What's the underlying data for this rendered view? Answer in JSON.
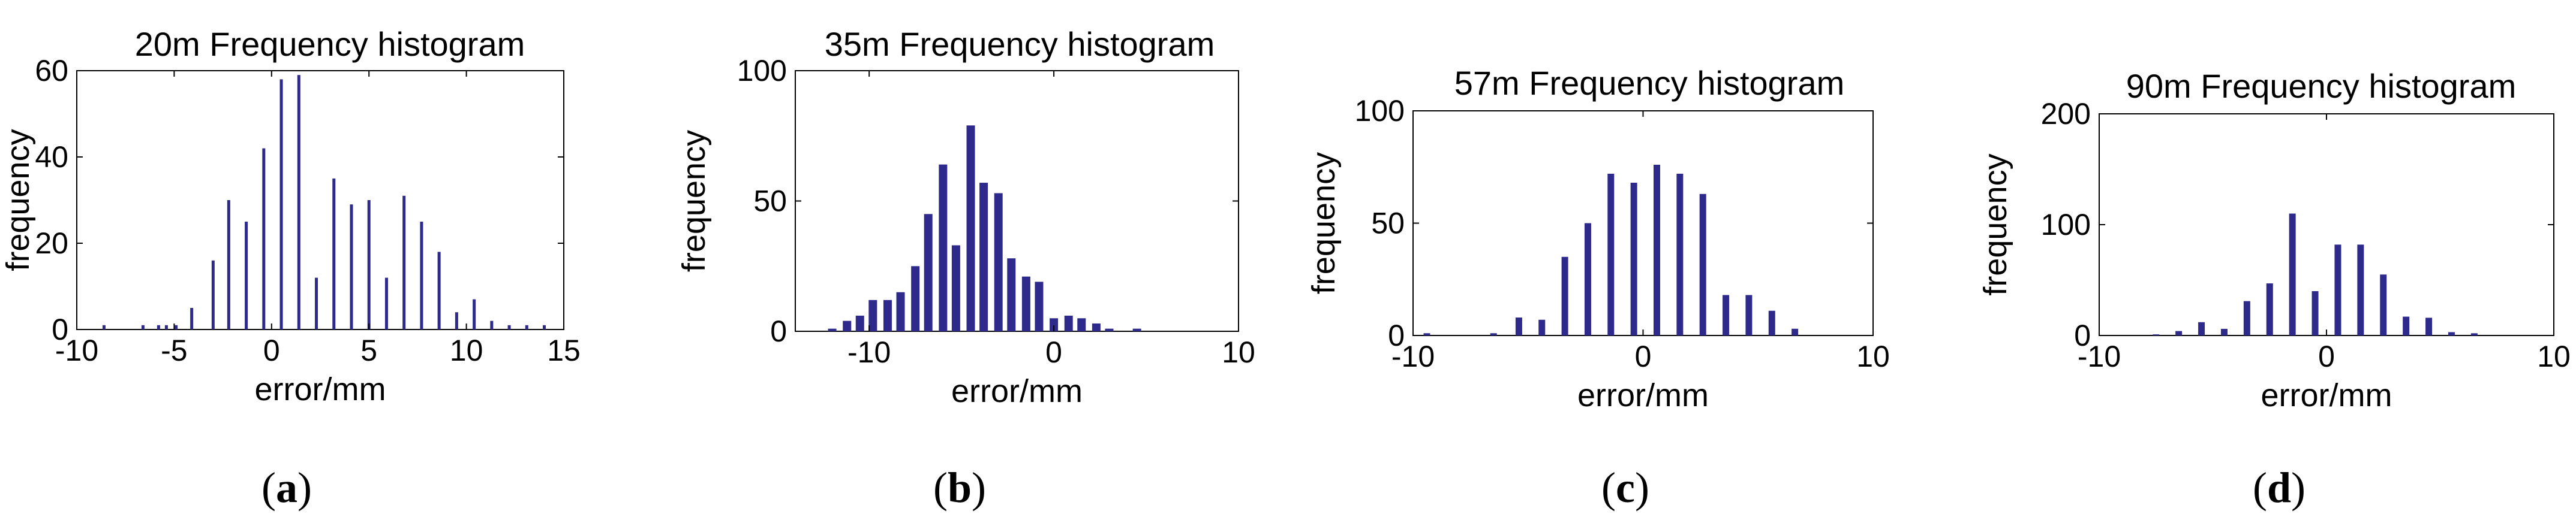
{
  "chart_data": [
    {
      "type": "bar",
      "title": "20m Frequency histogram",
      "xlabel": "error/mm",
      "ylabel": "frequency",
      "caption": "a",
      "xlim": [
        -10,
        15
      ],
      "ylim": [
        0,
        60
      ],
      "xticks": [
        -10,
        -5,
        0,
        5,
        10,
        15
      ],
      "yticks": [
        0,
        20,
        40,
        60
      ],
      "x": [
        -8.6,
        -6.6,
        -5.8,
        -5.4,
        -4.9,
        -4.1,
        -3.0,
        -2.2,
        -1.3,
        -0.4,
        0.5,
        1.4,
        2.3,
        3.2,
        4.1,
        5.0,
        5.9,
        6.8,
        7.7,
        8.6,
        9.5,
        10.4,
        11.3,
        12.2,
        13.1,
        14.0
      ],
      "values": [
        1,
        1,
        1,
        1,
        1,
        5,
        16,
        30,
        25,
        42,
        58,
        59,
        12,
        35,
        29,
        30,
        12,
        31,
        25,
        18,
        4,
        7,
        2,
        1,
        1,
        1
      ],
      "color": "#2e2a8c"
    },
    {
      "type": "bar",
      "title": "35m Frequency histogram",
      "xlabel": "error/mm",
      "ylabel": "frequency",
      "caption": "b",
      "xlim": [
        -14,
        10
      ],
      "ylim": [
        0,
        100
      ],
      "xticks": [
        -10,
        0,
        10
      ],
      "yticks": [
        0,
        50,
        100
      ],
      "x": [
        -12,
        -11.2,
        -10.5,
        -9.8,
        -9.0,
        -8.3,
        -7.5,
        -6.8,
        -6.0,
        -5.3,
        -4.5,
        -3.8,
        -3.0,
        -2.3,
        -1.5,
        -0.8,
        0,
        0.8,
        1.5,
        2.3,
        3.0,
        3.8,
        4.5
      ],
      "values": [
        1,
        4,
        6,
        12,
        12,
        15,
        25,
        45,
        64,
        33,
        79,
        57,
        53,
        28,
        21,
        19,
        5,
        6,
        5,
        3,
        1,
        0,
        1
      ],
      "color": "#2e2a8c"
    },
    {
      "type": "bar",
      "title": "57m Frequency histogram",
      "xlabel": "error/mm",
      "ylabel": "frequency",
      "caption": "c",
      "xlim": [
        -10,
        10
      ],
      "ylim": [
        0,
        100
      ],
      "xticks": [
        -10,
        0,
        10
      ],
      "yticks": [
        0,
        50,
        100
      ],
      "x": [
        -9.4,
        -6.5,
        -5.4,
        -4.4,
        -3.4,
        -2.4,
        -1.4,
        -0.4,
        0.6,
        1.6,
        2.6,
        3.6,
        4.6,
        5.6,
        6.6
      ],
      "values": [
        1,
        1,
        8,
        7,
        35,
        50,
        72,
        68,
        76,
        72,
        63,
        18,
        18,
        11,
        3
      ],
      "color": "#2e2a8c"
    },
    {
      "type": "bar",
      "title": "90m Frequency histogram",
      "xlabel": "error/mm",
      "ylabel": "frequency",
      "caption": "d",
      "xlim": [
        -10,
        10
      ],
      "ylim": [
        0,
        200
      ],
      "xticks": [
        -10,
        0,
        10
      ],
      "yticks": [
        0,
        100,
        200
      ],
      "x": [
        -7.5,
        -6.5,
        -5.5,
        -4.5,
        -3.5,
        -2.5,
        -1.5,
        -0.5,
        0.5,
        1.5,
        2.5,
        3.5,
        4.5,
        5.5,
        6.5
      ],
      "values": [
        1,
        4,
        12,
        6,
        31,
        47,
        110,
        40,
        82,
        82,
        55,
        17,
        16,
        3,
        2
      ],
      "color": "#2e2a8c"
    }
  ]
}
